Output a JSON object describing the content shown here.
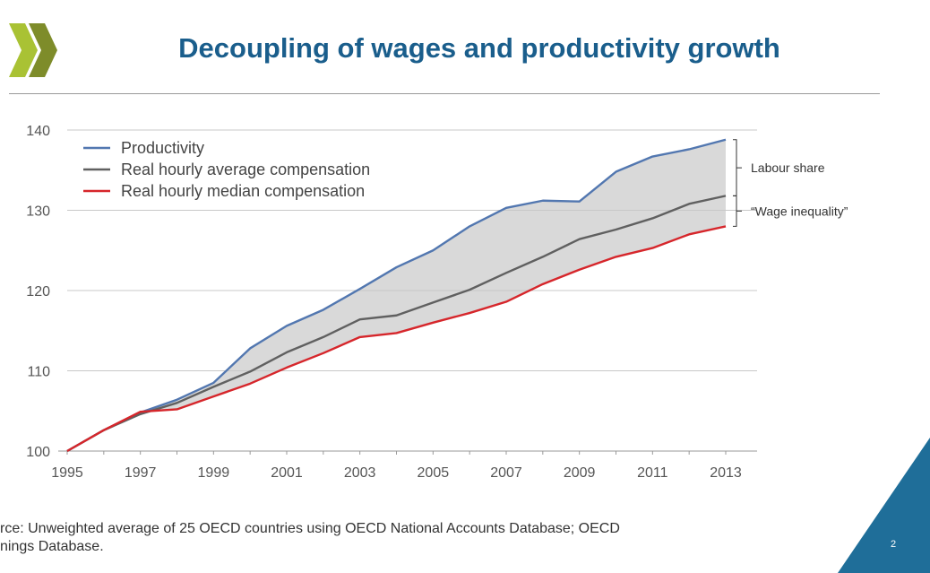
{
  "slide": {
    "title": "Decoupling of wages and productivity growth",
    "source_line1": "rce: Unweighted average of 25 OECD countries using OECD National Accounts Database; OECD",
    "source_line2": "nings Database.",
    "page_number": "2"
  },
  "colors": {
    "title": "#1a5e8c",
    "logo_light": "#a9c234",
    "logo_dark": "#7e8c2a",
    "corner": "#1f6e99",
    "shading": "#d9d9d9",
    "grid": "#c8c8c8"
  },
  "chart_data": {
    "type": "line",
    "x": [
      1995,
      1996,
      1997,
      1998,
      1999,
      2000,
      2001,
      2002,
      2003,
      2004,
      2005,
      2006,
      2007,
      2008,
      2009,
      2010,
      2011,
      2012,
      2013
    ],
    "x_ticks": [
      "1995",
      "1997",
      "1999",
      "2001",
      "2003",
      "2005",
      "2007",
      "2009",
      "2011",
      "2013"
    ],
    "y_ticks": [
      "100",
      "110",
      "120",
      "130",
      "140"
    ],
    "ylim": [
      100,
      140
    ],
    "xlim": [
      1995,
      2013
    ],
    "grid": "horizontal",
    "legend_position": "top-left",
    "shaded_between": [
      "Productivity",
      "Real hourly median compensation"
    ],
    "series": [
      {
        "name": "Productivity",
        "color": "#5277b0",
        "values": [
          100,
          102.6,
          104.8,
          106.4,
          108.5,
          112.8,
          115.6,
          117.6,
          120.2,
          122.9,
          125.0,
          128.0,
          130.3,
          131.2,
          131.1,
          134.8,
          136.7,
          137.6,
          138.8
        ]
      },
      {
        "name": "Real hourly average compensation",
        "color": "#606060",
        "values": [
          100,
          102.6,
          104.6,
          106.0,
          108.0,
          109.9,
          112.3,
          114.2,
          116.4,
          116.9,
          118.5,
          120.1,
          122.2,
          124.2,
          126.4,
          127.6,
          129.0,
          130.8,
          131.8
        ]
      },
      {
        "name": "Real hourly median compensation",
        "color": "#d6262b",
        "values": [
          100,
          102.6,
          104.9,
          105.2,
          106.8,
          108.4,
          110.4,
          112.2,
          114.2,
          114.7,
          116.0,
          117.2,
          118.6,
          120.8,
          122.6,
          124.2,
          125.3,
          127.0,
          128.0
        ]
      }
    ],
    "annotations": [
      {
        "text": "Labour share",
        "between": [
          131.8,
          138.8
        ]
      },
      {
        "text": "“Wage inequality”",
        "between": [
          128.0,
          131.8
        ]
      }
    ]
  }
}
